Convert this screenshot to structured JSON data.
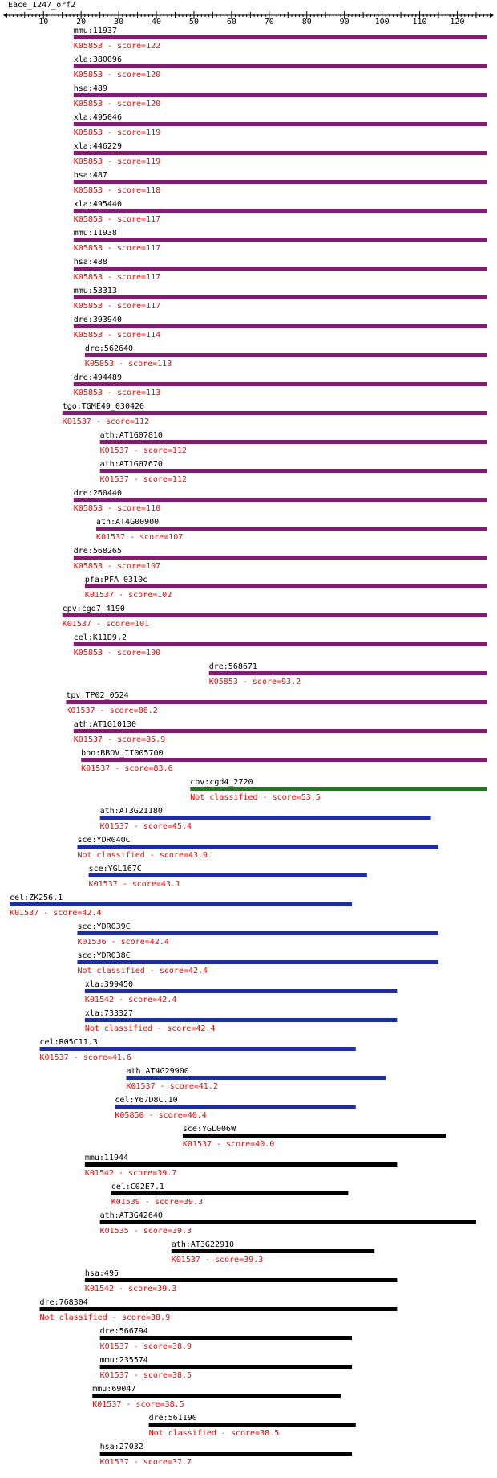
{
  "chart_data": {
    "type": "bar",
    "title": "Eace_1247_orf2",
    "axis": {
      "min": 1,
      "max": 128,
      "ticks": [
        10,
        20,
        30,
        40,
        50,
        60,
        70,
        80,
        90,
        100,
        110,
        120
      ]
    },
    "hits": [
      {
        "id": "mmu:11937",
        "label": "K05853 - score=122",
        "start": 18,
        "end": 128,
        "color": "#7f1f6f"
      },
      {
        "id": "xla:380096",
        "label": "K05853 - score=120",
        "start": 18,
        "end": 128,
        "color": "#7f1f6f"
      },
      {
        "id": "hsa:489",
        "label": "K05853 - score=120",
        "start": 18,
        "end": 128,
        "color": "#7f1f6f"
      },
      {
        "id": "xla:495046",
        "label": "K05853 - score=119",
        "start": 18,
        "end": 128,
        "color": "#7f1f6f"
      },
      {
        "id": "xla:446229",
        "label": "K05853 - score=119",
        "start": 18,
        "end": 128,
        "color": "#7f1f6f"
      },
      {
        "id": "hsa:487",
        "label": "K05853 - score=118",
        "start": 18,
        "end": 128,
        "color": "#7f1f6f"
      },
      {
        "id": "xla:495440",
        "label": "K05853 - score=117",
        "start": 18,
        "end": 128,
        "color": "#7f1f6f"
      },
      {
        "id": "mmu:11938",
        "label": "K05853 - score=117",
        "start": 18,
        "end": 128,
        "color": "#7f1f6f"
      },
      {
        "id": "hsa:488",
        "label": "K05853 - score=117",
        "start": 18,
        "end": 128,
        "color": "#7f1f6f"
      },
      {
        "id": "mmu:53313",
        "label": "K05853 - score=117",
        "start": 18,
        "end": 128,
        "color": "#7f1f6f"
      },
      {
        "id": "dre:393940",
        "label": "K05853 - score=114",
        "start": 18,
        "end": 128,
        "color": "#7f1f6f"
      },
      {
        "id": "dre:562640",
        "label": "K05853 - score=113",
        "start": 21,
        "end": 128,
        "color": "#7f1f6f"
      },
      {
        "id": "dre:494489",
        "label": "K05853 - score=113",
        "start": 18,
        "end": 128,
        "color": "#7f1f6f"
      },
      {
        "id": "tgo:TGME49_030420",
        "label": "K01537 - score=112",
        "start": 15,
        "end": 128,
        "color": "#7f1f6f"
      },
      {
        "id": "ath:AT1G07810",
        "label": "K01537 - score=112",
        "start": 25,
        "end": 128,
        "color": "#7f1f6f"
      },
      {
        "id": "ath:AT1G07670",
        "label": "K01537 - score=112",
        "start": 25,
        "end": 128,
        "color": "#7f1f6f"
      },
      {
        "id": "dre:260440",
        "label": "K05853 - score=110",
        "start": 18,
        "end": 128,
        "color": "#7f1f6f"
      },
      {
        "id": "ath:AT4G00900",
        "label": "K01537 - score=107",
        "start": 24,
        "end": 128,
        "color": "#7f1f6f"
      },
      {
        "id": "dre:568265",
        "label": "K05853 - score=107",
        "start": 18,
        "end": 128,
        "color": "#7f1f6f"
      },
      {
        "id": "pfa:PFA_0310c",
        "label": "K01537 - score=102",
        "start": 21,
        "end": 128,
        "color": "#7f1f6f"
      },
      {
        "id": "cpv:cgd7_4190",
        "label": "K01537 - score=101",
        "start": 15,
        "end": 128,
        "color": "#7f1f6f"
      },
      {
        "id": "cel:K11D9.2",
        "label": "K05853 - score=100",
        "start": 18,
        "end": 128,
        "color": "#7f1f6f"
      },
      {
        "id": "dre:568671",
        "label": "K05853 - score=93.2",
        "start": 54,
        "end": 128,
        "color": "#7f1f6f"
      },
      {
        "id": "tpv:TP02_0524",
        "label": "K01537 - score=88.2",
        "start": 16,
        "end": 128,
        "color": "#7f1f6f"
      },
      {
        "id": "ath:AT1G10130",
        "label": "K01537 - score=85.9",
        "start": 18,
        "end": 128,
        "color": "#7f1f6f"
      },
      {
        "id": "bbo:BBOV_II005700",
        "label": "K01537 - score=83.6",
        "start": 20,
        "end": 128,
        "color": "#7f1f6f"
      },
      {
        "id": "cpv:cgd4_2720",
        "label": "Not classified - score=53.5",
        "start": 49,
        "end": 128,
        "color": "#2e6e2e"
      },
      {
        "id": "ath:AT3G21180",
        "label": "K01537 - score=45.4",
        "start": 25,
        "end": 113,
        "color": "#1e2ea0"
      },
      {
        "id": "sce:YDR040C",
        "label": "Not classified - score=43.9",
        "start": 19,
        "end": 115,
        "color": "#1e2ea0"
      },
      {
        "id": "sce:YGL167C",
        "label": "K01537 - score=43.1",
        "start": 22,
        "end": 96,
        "color": "#1e2ea0"
      },
      {
        "id": "cel:ZK256.1",
        "label": "K01537 - score=42.4",
        "start": 1,
        "end": 92,
        "color": "#1e2ea0"
      },
      {
        "id": "sce:YDR039C",
        "label": "K01536 - score=42.4",
        "start": 19,
        "end": 115,
        "color": "#1e2ea0"
      },
      {
        "id": "sce:YDR038C",
        "label": "Not classified - score=42.4",
        "start": 19,
        "end": 115,
        "color": "#1e2ea0"
      },
      {
        "id": "xla:399450",
        "label": "K01542 - score=42.4",
        "start": 21,
        "end": 104,
        "color": "#1e2ea0"
      },
      {
        "id": "xla:733327",
        "label": "Not classified - score=42.4",
        "start": 21,
        "end": 104,
        "color": "#1e2ea0"
      },
      {
        "id": "cel:R05C11.3",
        "label": "K01537 - score=41.6",
        "start": 9,
        "end": 93,
        "color": "#1e2ea0"
      },
      {
        "id": "ath:AT4G29900",
        "label": "K01537 - score=41.2",
        "start": 32,
        "end": 101,
        "color": "#1e2ea0"
      },
      {
        "id": "cel:Y67D8C.10",
        "label": "K05850 - score=40.4",
        "start": 29,
        "end": 93,
        "color": "#1e2ea0"
      },
      {
        "id": "sce:YGL006W",
        "label": "K01537 - score=40.0",
        "start": 47,
        "end": 117,
        "color": "#000000"
      },
      {
        "id": "mmu:11944",
        "label": "K01542 - score=39.7",
        "start": 21,
        "end": 104,
        "color": "#000000"
      },
      {
        "id": "cel:C02E7.1",
        "label": "K01539 - score=39.3",
        "start": 28,
        "end": 91,
        "color": "#000000"
      },
      {
        "id": "ath:AT3G42640",
        "label": "K01535 - score=39.3",
        "start": 25,
        "end": 125,
        "color": "#000000"
      },
      {
        "id": "ath:AT3G22910",
        "label": "K01537 - score=39.3",
        "start": 44,
        "end": 98,
        "color": "#000000"
      },
      {
        "id": "hsa:495",
        "label": "K01542 - score=39.3",
        "start": 21,
        "end": 104,
        "color": "#000000"
      },
      {
        "id": "dre:768304",
        "label": "Not classified - score=38.9",
        "start": 9,
        "end": 104,
        "color": "#000000"
      },
      {
        "id": "dre:566794",
        "label": "K01537 - score=38.9",
        "start": 25,
        "end": 92,
        "color": "#000000"
      },
      {
        "id": "mmu:235574",
        "label": "K01537 - score=38.5",
        "start": 25,
        "end": 92,
        "color": "#000000"
      },
      {
        "id": "mmu:69047",
        "label": "K01537 - score=38.5",
        "start": 23,
        "end": 89,
        "color": "#000000"
      },
      {
        "id": "dre:561190",
        "label": "Not classified - score=38.5",
        "start": 38,
        "end": 93,
        "color": "#000000"
      },
      {
        "id": "hsa:27032",
        "label": "K01537 - score=37.7",
        "start": 25,
        "end": 92,
        "color": "#000000"
      }
    ]
  }
}
